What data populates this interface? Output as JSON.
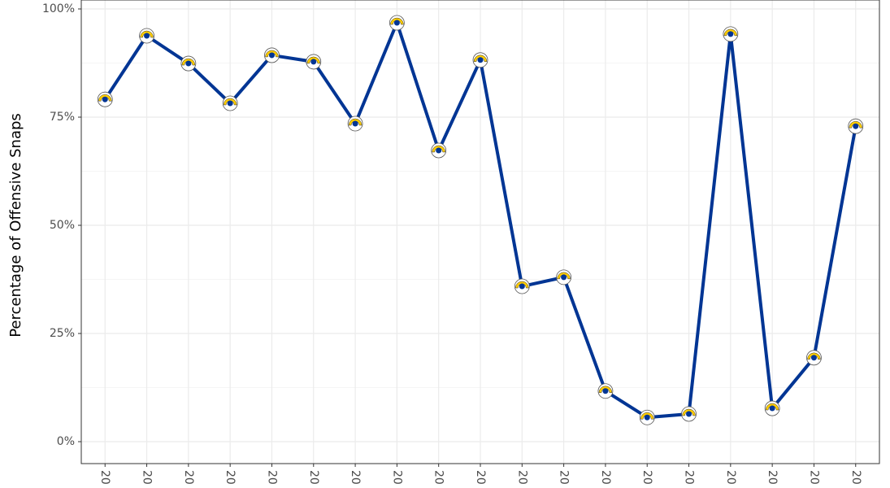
{
  "chart_data": {
    "type": "line",
    "y_label": "Percentage of Offensive Snaps",
    "categories": [
      "20",
      "20",
      "20",
      "20",
      "20",
      "20",
      "20",
      "20",
      "20",
      "20",
      "20",
      "20",
      "20",
      "20",
      "20",
      "20",
      "20",
      "20",
      "20"
    ],
    "series": [
      {
        "color": "#003594",
        "values": [
          79.1,
          93.8,
          87.4,
          78.2,
          89.3,
          87.8,
          73.5,
          96.8,
          67.3,
          88.2,
          35.9,
          38.0,
          11.7,
          5.6,
          6.4,
          94.2,
          7.7,
          19.4,
          72.9
        ]
      }
    ],
    "ylim": [
      -5.07,
      102.07
    ],
    "yticks": [
      {
        "value": 0,
        "label": "0%"
      },
      {
        "value": 25,
        "label": "25%"
      },
      {
        "value": 50,
        "label": "50%"
      },
      {
        "value": 75,
        "label": "75%"
      },
      {
        "value": 100,
        "label": "100%"
      }
    ],
    "grid": true
  }
}
